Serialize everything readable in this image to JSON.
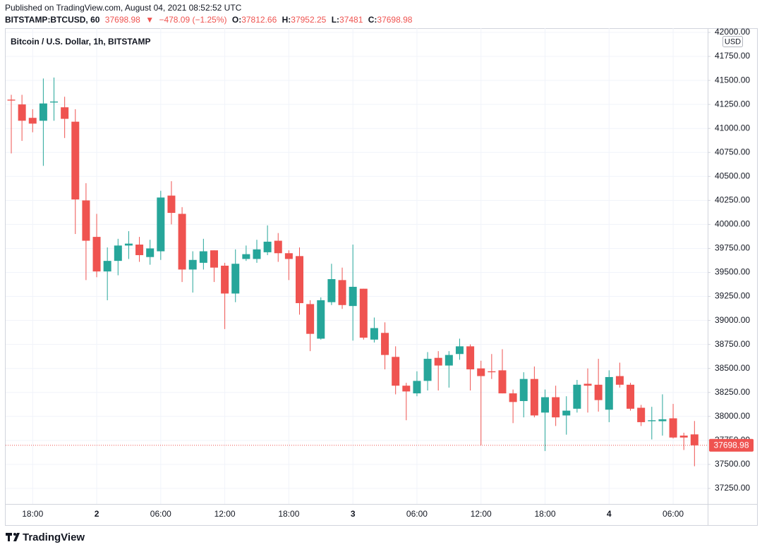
{
  "header": {
    "published": "Published on TradingView.com, August 04, 2021 08:52:52 UTC",
    "symbol": "BITSTAMP:BTCUSD, 60",
    "arrow": "▼",
    "change": "−478.09 (−1.25%)",
    "o": "O:",
    "h": "H:",
    "l": "L:",
    "c": "C:",
    "currency": "USD"
  },
  "footer": {
    "brand": "TradingView"
  },
  "chart_data": {
    "type": "candlestick",
    "title": "Bitcoin / U.S. Dollar, 1h, BITSTAMP",
    "up_color": "#26a69a",
    "down_color": "#ef5350",
    "grid": true,
    "categories": [
      null,
      null,
      "18:00",
      null,
      null,
      null,
      null,
      null,
      "2",
      null,
      null,
      null,
      null,
      null,
      "06:00",
      null,
      null,
      null,
      null,
      null,
      "12:00",
      null,
      null,
      null,
      null,
      null,
      "18:00",
      null,
      null,
      null,
      null,
      null,
      "3",
      null,
      null,
      null,
      null,
      null,
      "06:00",
      null,
      null,
      null,
      null,
      null,
      "12:00",
      null,
      null,
      null,
      null,
      null,
      "18:00",
      null,
      null,
      null,
      null,
      null,
      "4",
      null,
      null,
      null,
      null,
      null,
      "06:00",
      null,
      null
    ],
    "open": [
      41300,
      41250,
      41110,
      41080,
      41270,
      41220,
      41070,
      40250,
      39870,
      39510,
      39620,
      39780,
      39790,
      39660,
      39720,
      40300,
      40110,
      39530,
      39600,
      39730,
      39570,
      39280,
      39640,
      39640,
      39710,
      39830,
      39700,
      39670,
      39170,
      38810,
      39190,
      39420,
      39150,
      39330,
      38800,
      38870,
      38620,
      38320,
      38240,
      38370,
      38610,
      38530,
      38650,
      38730,
      38500,
      38470,
      38480,
      38240,
      38160,
      38390,
      38040,
      38200,
      38010,
      38080,
      38340,
      38330,
      38070,
      38420,
      38330,
      38090,
      37950,
      37950,
      37980,
      37800,
      37812.66
    ],
    "high": [
      41350,
      41350,
      41200,
      41520,
      41530,
      41330,
      41200,
      40430,
      40110,
      39760,
      39850,
      39930,
      39870,
      39840,
      40350,
      40450,
      40180,
      39720,
      39850,
      39730,
      39600,
      39740,
      39780,
      39840,
      39990,
      39910,
      39730,
      39760,
      39210,
      39240,
      39590,
      39550,
      39790,
      39330,
      39030,
      38980,
      38730,
      38350,
      38470,
      38670,
      38680,
      38680,
      38810,
      38750,
      38580,
      38650,
      38700,
      38280,
      38460,
      38520,
      38280,
      38320,
      38210,
      38380,
      38500,
      38600,
      38480,
      38560,
      38350,
      38120,
      38100,
      38230,
      38130,
      37830,
      37952.25
    ],
    "low": [
      40740,
      40870,
      40960,
      40610,
      41080,
      40900,
      39900,
      39420,
      39450,
      39210,
      39470,
      39640,
      39610,
      39580,
      39630,
      40000,
      39400,
      39290,
      39530,
      39400,
      38910,
      39190,
      39620,
      39600,
      39680,
      39610,
      39420,
      39060,
      38680,
      38800,
      39160,
      39120,
      38790,
      38800,
      38770,
      38490,
      38230,
      37960,
      38210,
      38270,
      38270,
      38300,
      38590,
      38270,
      37700,
      38390,
      38240,
      37930,
      37990,
      37990,
      37640,
      37900,
      37810,
      38040,
      38040,
      38050,
      37940,
      38300,
      38060,
      37900,
      37760,
      37800,
      37770,
      37650,
      37481.0
    ],
    "close": [
      41290,
      41080,
      41050,
      41260,
      41280,
      41100,
      40260,
      39830,
      39510,
      39620,
      39780,
      39800,
      39680,
      39750,
      40280,
      40120,
      39530,
      39630,
      39720,
      39550,
      39280,
      39590,
      39690,
      39740,
      39820,
      39700,
      39640,
      39180,
      38860,
      39210,
      39430,
      39160,
      39350,
      38820,
      38920,
      38640,
      38320,
      38260,
      38370,
      38600,
      38530,
      38640,
      38730,
      38490,
      38420,
      38460,
      38240,
      38150,
      38390,
      38010,
      38200,
      37990,
      38060,
      38330,
      38320,
      38170,
      38410,
      38330,
      38080,
      37940,
      37960,
      37970,
      37780,
      37780,
      37698.98
    ],
    "ylim": [
      37088,
      42044
    ],
    "yticks": [
      {
        "value": 37250,
        "label": "37250.00"
      },
      {
        "value": 37500,
        "label": "37500.00"
      },
      {
        "value": 37750,
        "label": "37750.00"
      },
      {
        "value": 38000,
        "label": "38000.00"
      },
      {
        "value": 38250,
        "label": "38250.00"
      },
      {
        "value": 38500,
        "label": "38500.00"
      },
      {
        "value": 38750,
        "label": "38750.00"
      },
      {
        "value": 39000,
        "label": "39000.00"
      },
      {
        "value": 39250,
        "label": "39250.00"
      },
      {
        "value": 39500,
        "label": "39500.00"
      },
      {
        "value": 39750,
        "label": "39750.00"
      },
      {
        "value": 40000,
        "label": "40000.00"
      },
      {
        "value": 40250,
        "label": "40250.00"
      },
      {
        "value": 40500,
        "label": "40500.00"
      },
      {
        "value": 40750,
        "label": "40750.00"
      },
      {
        "value": 41000,
        "label": "41000.00"
      },
      {
        "value": 41250,
        "label": "41250.00"
      },
      {
        "value": 41500,
        "label": "41500.00"
      },
      {
        "value": 41750,
        "label": "41750.00"
      },
      {
        "value": 42000,
        "label": "42000.00"
      }
    ]
  }
}
